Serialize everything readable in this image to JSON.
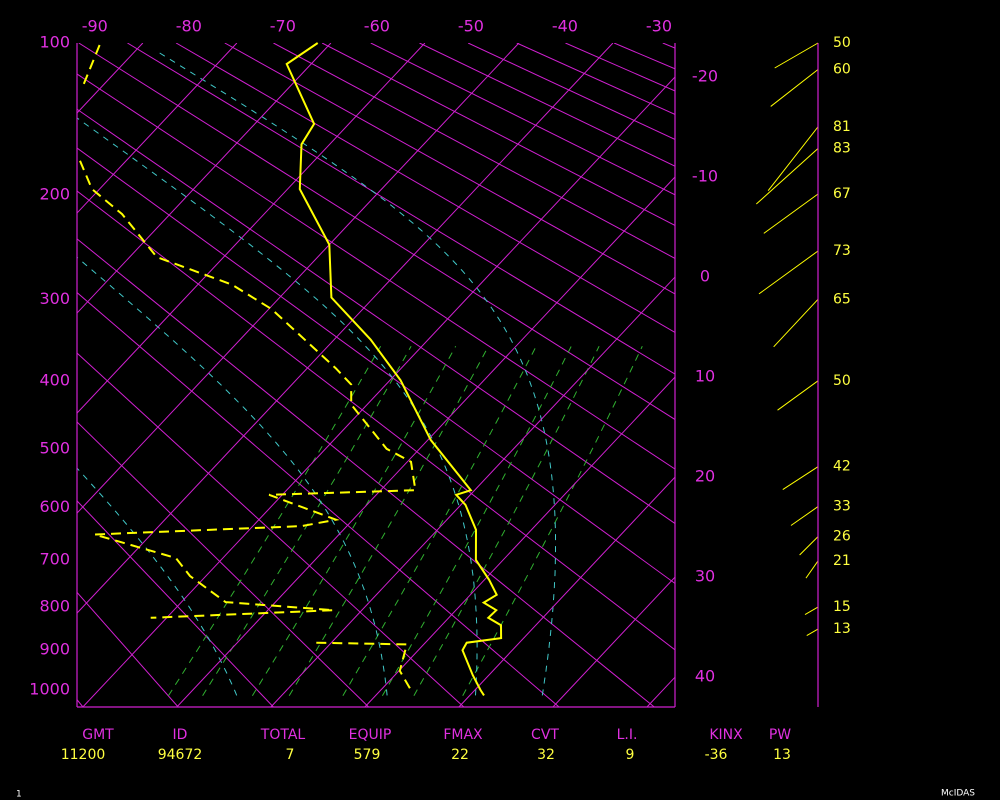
{
  "chart_data": {
    "type": "skew-t",
    "ylim": [
      100,
      1045
    ],
    "yscale": "pressure-kappa",
    "yticks": [
      100,
      200,
      300,
      400,
      500,
      600,
      700,
      800,
      900,
      1000
    ],
    "xlim": [
      -87.0,
      -23.4
    ],
    "xticks": [
      -90,
      -80,
      -70,
      -60,
      -50,
      -40,
      -30,
      -20,
      -10,
      0,
      10,
      20,
      30,
      40
    ],
    "grid": true,
    "grid_color": "#d020d0",
    "series": [
      {
        "color": "#ffff00",
        "line_style": "solid",
        "pressure": [
          100,
          111,
          147,
          161,
          195,
          244,
          298,
          347,
          399,
          486,
          543,
          569,
          577,
          595,
          641,
          700,
          741,
          773,
          790,
          807,
          824,
          841,
          871,
          882,
          900,
          962,
          1000,
          1014
        ],
        "temperature": [
          -61.4,
          -62.6,
          -53.7,
          -53.0,
          -48.7,
          -40.0,
          -34.5,
          -26.1,
          -18.9,
          -9.7,
          -3.2,
          -0.4,
          -1.5,
          0.5,
          4.1,
          7.1,
          10.5,
          12.8,
          12.2,
          14.3,
          14.2,
          16.3,
          17.6,
          14.4,
          14.7,
          18.3,
          20.6,
          21.5
        ]
      },
      {
        "color": "#ffff00",
        "line_style": "dashed",
        "pressure": [
          101,
          125,
          null,
          173,
          195,
          216,
          256,
          284,
          311,
          383,
          405,
          433,
          500,
          521,
          569,
          577,
          622,
          634,
          650,
          696,
          733,
          789,
          807,
          824,
          null,
          882,
          886,
          951,
          1000
        ],
        "temperature": [
          -84.4,
          -81.9,
          null,
          -74.9,
          -70.8,
          -65.1,
          -57.1,
          -46.4,
          -39.7,
          -27.0,
          -23.7,
          -21.7,
          -13.5,
          -9.6,
          -6.3,
          -21.4,
          -11.8,
          -14.8,
          -36.0,
          -25.0,
          -21.7,
          -15.3,
          -3.0,
          -21.7,
          null,
          -1.6,
          8.2,
          10.1,
          13.2
        ]
      }
    ],
    "wind": {
      "color": "#ffff00",
      "pressure": [
        100,
        114,
        149,
        164,
        199,
        250,
        300,
        400,
        529,
        598,
        654,
        702,
        800,
        850
      ],
      "speed": [
        50,
        60,
        81,
        83,
        67,
        73,
        65,
        50,
        42,
        33,
        26,
        21,
        15,
        13
      ],
      "direction": [
        240,
        232,
        218,
        228,
        234,
        234,
        223,
        234,
        237,
        235,
        225,
        215,
        240,
        240
      ]
    }
  },
  "indices": {
    "headers": [
      "GMT",
      "ID",
      "TOTAL",
      "EQUIP",
      "FMAX",
      "CVT",
      "L.I.",
      "KINX",
      "PW"
    ],
    "values": [
      11200,
      94672,
      7,
      579,
      22,
      32,
      9,
      -36,
      13
    ]
  },
  "footer": {
    "page": "1",
    "source": "McIDAS"
  }
}
